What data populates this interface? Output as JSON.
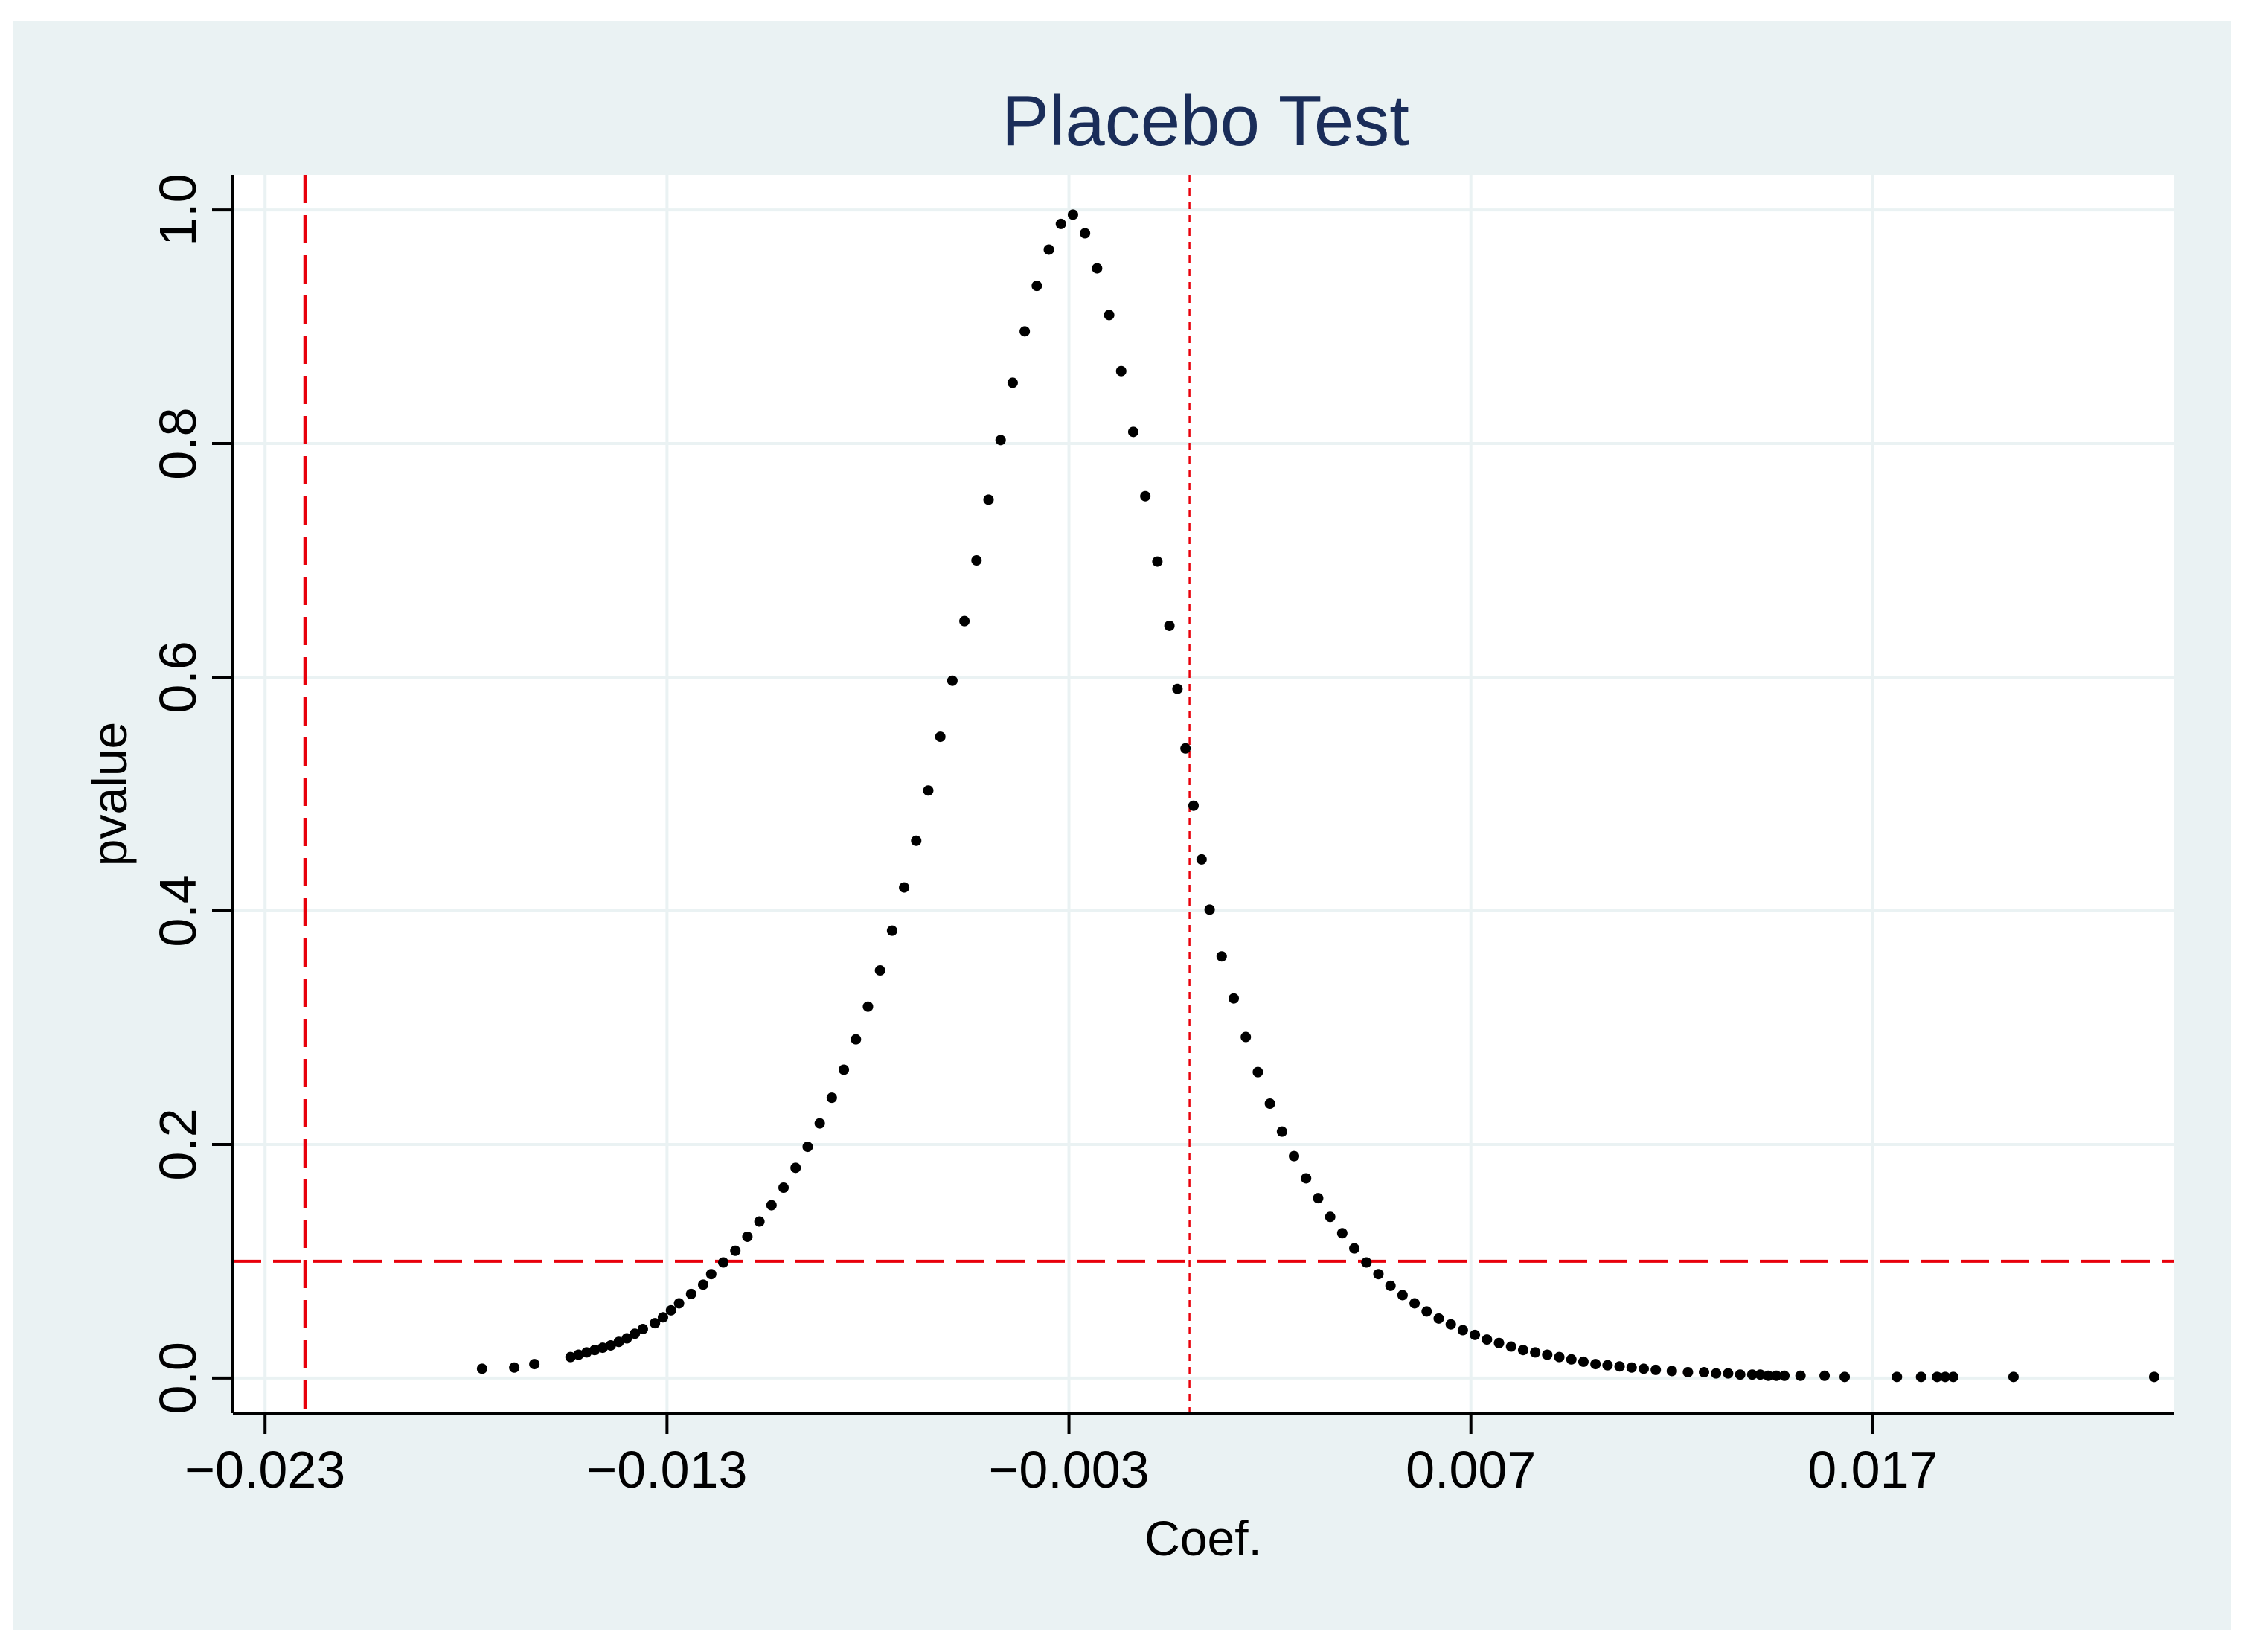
{
  "chart_data": {
    "type": "scatter",
    "title": "Placebo Test",
    "xlabel": "Coef.",
    "ylabel": "pvalue",
    "xlim": [
      -0.0238,
      0.0245
    ],
    "ylim": [
      -0.03,
      1.03
    ],
    "xticks": [
      -0.023,
      -0.013,
      -0.003,
      0.007,
      0.017
    ],
    "xtick_labels": [
      "−0.023",
      "−0.013",
      "−0.003",
      "0.007",
      "0.017"
    ],
    "yticks": [
      0.0,
      0.2,
      0.4,
      0.6,
      0.8,
      1.0
    ],
    "ytick_labels": [
      "0.0",
      "0.2",
      "0.4",
      "0.6",
      "0.8",
      "1.0"
    ],
    "grid": true,
    "colors": {
      "outer_background": "#eaf2f3",
      "plot_background": "#ffffff",
      "grid": "#eaf2f3",
      "points": "#000000",
      "reference_lines": "#e8000b",
      "title": "#1a2d59",
      "text": "#000000"
    },
    "reference_lines": {
      "true_coefficient_x": -0.022,
      "significance_y": 0.1,
      "center_x": 0.0
    },
    "series": [
      {
        "x": [
          -0.0176,
          -0.0168,
          -0.0163,
          -0.0154,
          -0.0152,
          -0.015,
          -0.0148,
          -0.0146,
          -0.0144,
          -0.0142,
          -0.014,
          -0.0138,
          -0.0136,
          -0.0133,
          -0.0131,
          -0.0129,
          -0.0127,
          -0.0124,
          -0.0121,
          -0.0119,
          -0.0116,
          -0.0113,
          -0.011,
          -0.0107,
          -0.0104,
          -0.0101,
          -0.0098,
          -0.0095,
          -0.0092,
          -0.0089,
          -0.0086,
          -0.0083,
          -0.008,
          -0.0077,
          -0.0074,
          -0.0071,
          -0.0068,
          -0.0065,
          -0.0062,
          -0.0059,
          -0.0056,
          -0.0053,
          -0.005,
          -0.0047,
          -0.0044,
          -0.0041,
          -0.0038,
          -0.0035,
          -0.0032,
          -0.0029,
          -0.0026,
          -0.0023,
          -0.002,
          -0.0017,
          -0.0014,
          -0.0011,
          -0.0008,
          -0.0005,
          -0.0003,
          -0.0001,
          0.0001,
          0.0003,
          0.0005,
          0.0008,
          0.0011,
          0.0014,
          0.0017,
          0.002,
          0.0023,
          0.0026,
          0.0029,
          0.0032,
          0.0035,
          0.0038,
          0.0041,
          0.0044,
          0.0047,
          0.005,
          0.0053,
          0.0056,
          0.0059,
          0.0062,
          0.0065,
          0.0068,
          0.0071,
          0.0074,
          0.0077,
          0.008,
          0.0083,
          0.0086,
          0.0089,
          0.0092,
          0.0095,
          0.0098,
          0.0101,
          0.0104,
          0.0107,
          0.011,
          0.0113,
          0.0116,
          0.012,
          0.0124,
          0.0128,
          0.0131,
          0.0134,
          0.0137,
          0.014,
          0.0142,
          0.0144,
          0.0146,
          0.0148,
          0.0152,
          0.0158,
          0.0163,
          0.0176,
          0.0182,
          0.0186,
          0.0188,
          0.019,
          0.0205,
          0.024
        ],
        "y": [
          0.008,
          0.009,
          0.012,
          0.018,
          0.02,
          0.022,
          0.024,
          0.026,
          0.028,
          0.031,
          0.034,
          0.038,
          0.042,
          0.047,
          0.052,
          0.058,
          0.064,
          0.072,
          0.08,
          0.089,
          0.099,
          0.109,
          0.121,
          0.134,
          0.148,
          0.163,
          0.18,
          0.198,
          0.218,
          0.24,
          0.264,
          0.29,
          0.318,
          0.349,
          0.383,
          0.42,
          0.46,
          0.503,
          0.549,
          0.597,
          0.648,
          0.7,
          0.752,
          0.803,
          0.852,
          0.896,
          0.935,
          0.966,
          0.988,
          0.996,
          0.98,
          0.95,
          0.91,
          0.862,
          0.81,
          0.755,
          0.699,
          0.644,
          0.59,
          0.539,
          0.49,
          0.444,
          0.401,
          0.361,
          0.325,
          0.292,
          0.262,
          0.235,
          0.211,
          0.19,
          0.171,
          0.154,
          0.138,
          0.124,
          0.111,
          0.099,
          0.089,
          0.079,
          0.071,
          0.064,
          0.057,
          0.051,
          0.046,
          0.041,
          0.037,
          0.033,
          0.03,
          0.027,
          0.024,
          0.022,
          0.02,
          0.018,
          0.016,
          0.014,
          0.012,
          0.011,
          0.01,
          0.009,
          0.008,
          0.007,
          0.006,
          0.005,
          0.005,
          0.004,
          0.004,
          0.003,
          0.003,
          0.003,
          0.002,
          0.002,
          0.002,
          0.002,
          0.002,
          0.001,
          0.001,
          0.001,
          0.001,
          0.001,
          0.001,
          0.001,
          0.001
        ]
      }
    ]
  }
}
